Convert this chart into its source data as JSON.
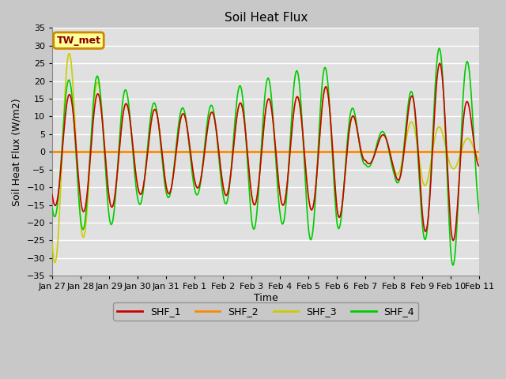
{
  "title": "Soil Heat Flux",
  "xlabel": "Time",
  "ylabel": "Soil Heat Flux (W/m2)",
  "ylim": [
    -35,
    35
  ],
  "yticks": [
    -35,
    -30,
    -25,
    -20,
    -15,
    -10,
    -5,
    0,
    5,
    10,
    15,
    20,
    25,
    30,
    35
  ],
  "xtick_labels": [
    "Jan 27",
    "Jan 28",
    "Jan 29",
    "Jan 30",
    "Jan 31",
    "Feb 1",
    "Feb 2",
    "Feb 3",
    "Feb 4",
    "Feb 5",
    "Feb 6",
    "Feb 7",
    "Feb 8",
    "Feb 9",
    "Feb 10",
    "Feb 11"
  ],
  "colors": {
    "SHF_1": "#cc0000",
    "SHF_2": "#ff8800",
    "SHF_3": "#cccc00",
    "SHF_4": "#00cc00"
  },
  "annotation_text": "TW_met",
  "fig_facecolor": "#c8c8c8",
  "ax_facecolor": "#e0e0e0",
  "grid_color": "#ffffff",
  "line_width": 1.2
}
